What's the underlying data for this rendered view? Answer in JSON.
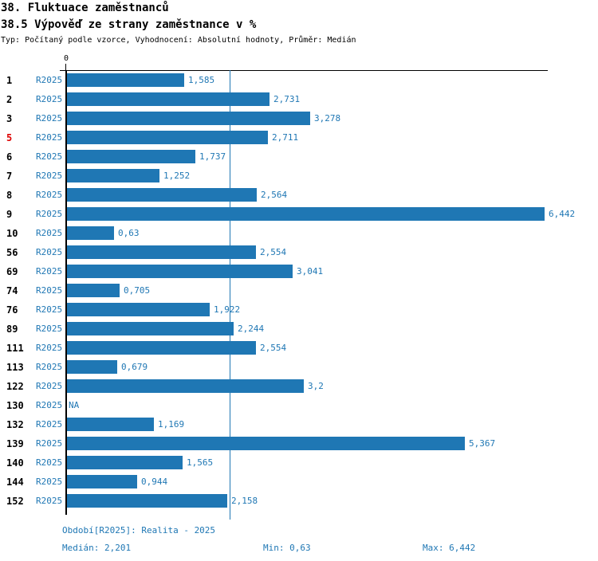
{
  "title": "38. Fluktuace zaměstnanců",
  "subtitle": "38.5 Výpověď ze strany zaměstnance v %",
  "meta": "Typ: Počítaný podle vzorce, Vyhodnocení: Absolutní hodnoty, Průměr: Medián",
  "colors": {
    "blue": "#1f77b4",
    "red": "#dd0000",
    "axis": "#000000",
    "background": "#ffffff"
  },
  "chart_data": {
    "type": "bar",
    "orientation": "horizontal",
    "title": "38.5 Výpověď ze strany zaměstnance v %",
    "xlabel": "",
    "ylabel": "",
    "axis": {
      "tick_label": "0",
      "xmin": 0,
      "xmax": 6.5,
      "median": 2.201,
      "grid": false
    },
    "period_label": "R2025",
    "rows": [
      {
        "id": "1",
        "value": 1.585,
        "label": "1,585",
        "highlight": false
      },
      {
        "id": "2",
        "value": 2.731,
        "label": "2,731",
        "highlight": false
      },
      {
        "id": "3",
        "value": 3.278,
        "label": "3,278",
        "highlight": false
      },
      {
        "id": "5",
        "value": 2.711,
        "label": "2,711",
        "highlight": true
      },
      {
        "id": "6",
        "value": 1.737,
        "label": "1,737",
        "highlight": false
      },
      {
        "id": "7",
        "value": 1.252,
        "label": "1,252",
        "highlight": false
      },
      {
        "id": "8",
        "value": 2.564,
        "label": "2,564",
        "highlight": false
      },
      {
        "id": "9",
        "value": 6.442,
        "label": "6,442",
        "highlight": false
      },
      {
        "id": "10",
        "value": 0.63,
        "label": "0,63",
        "highlight": false
      },
      {
        "id": "56",
        "value": 2.554,
        "label": "2,554",
        "highlight": false
      },
      {
        "id": "69",
        "value": 3.041,
        "label": "3,041",
        "highlight": false
      },
      {
        "id": "74",
        "value": 0.705,
        "label": "0,705",
        "highlight": false
      },
      {
        "id": "76",
        "value": 1.922,
        "label": "1,922",
        "highlight": false
      },
      {
        "id": "89",
        "value": 2.244,
        "label": "2,244",
        "highlight": false
      },
      {
        "id": "111",
        "value": 2.554,
        "label": "2,554",
        "highlight": false
      },
      {
        "id": "113",
        "value": 0.679,
        "label": "0,679",
        "highlight": false
      },
      {
        "id": "122",
        "value": 3.2,
        "label": "3,2",
        "highlight": false
      },
      {
        "id": "130",
        "value": null,
        "label": "NA",
        "highlight": false
      },
      {
        "id": "132",
        "value": 1.169,
        "label": "1,169",
        "highlight": false
      },
      {
        "id": "139",
        "value": 5.367,
        "label": "5,367",
        "highlight": false
      },
      {
        "id": "140",
        "value": 1.565,
        "label": "1,565",
        "highlight": false
      },
      {
        "id": "144",
        "value": 0.944,
        "label": "0,944",
        "highlight": false
      },
      {
        "id": "152",
        "value": 2.158,
        "label": "2,158",
        "highlight": false
      }
    ]
  },
  "footer": {
    "period": "Období[R2025]: Realita - 2025",
    "median": "Medián: 2,201",
    "min": "Min: 0,63",
    "max": "Max: 6,442"
  }
}
